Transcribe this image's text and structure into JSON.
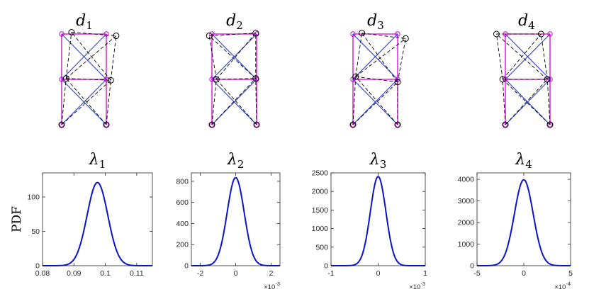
{
  "colors": {
    "undeformed": "#d100d1",
    "bracing": "#2a3fd6",
    "deformed": "#000000",
    "pdf_curve": "#0a14c8"
  },
  "mode_shapes": [
    {
      "label_base": "d",
      "label_sub": "1",
      "nodes": [
        [
          0,
          0
        ],
        [
          1,
          0
        ],
        [
          0,
          1
        ],
        [
          1,
          1
        ],
        [
          0,
          2
        ],
        [
          1,
          2
        ]
      ],
      "deformed": [
        [
          0,
          0
        ],
        [
          1,
          0
        ],
        [
          0.1,
          1.02
        ],
        [
          1.1,
          0.98
        ],
        [
          0.22,
          2.04
        ],
        [
          1.22,
          1.96
        ]
      ]
    },
    {
      "label_base": "d",
      "label_sub": "2",
      "nodes": [
        [
          0,
          0
        ],
        [
          1,
          0
        ],
        [
          0,
          1
        ],
        [
          1,
          1
        ],
        [
          0,
          2
        ],
        [
          1,
          2
        ]
      ],
      "deformed": [
        [
          0,
          0
        ],
        [
          1,
          0
        ],
        [
          0.1,
          1.0
        ],
        [
          0.98,
          1.02
        ],
        [
          -0.06,
          1.96
        ],
        [
          0.98,
          2.02
        ]
      ]
    },
    {
      "label_base": "d",
      "label_sub": "3",
      "nodes": [
        [
          0,
          0
        ],
        [
          1,
          0
        ],
        [
          0,
          1
        ],
        [
          1,
          1
        ],
        [
          0,
          2
        ],
        [
          1,
          2
        ]
      ],
      "deformed": [
        [
          0,
          0
        ],
        [
          1,
          0
        ],
        [
          0.06,
          1.06
        ],
        [
          1.0,
          0.94
        ],
        [
          0.2,
          2.02
        ],
        [
          1.18,
          1.9
        ]
      ]
    },
    {
      "label_base": "d",
      "label_sub": "4",
      "nodes": [
        [
          0,
          0
        ],
        [
          1,
          0
        ],
        [
          0,
          1
        ],
        [
          1,
          1
        ],
        [
          0,
          2
        ],
        [
          1,
          2
        ]
      ],
      "deformed": [
        [
          0,
          0
        ],
        [
          1,
          0
        ],
        [
          -0.06,
          1.0
        ],
        [
          0.94,
          1.0
        ],
        [
          -0.2,
          2.0
        ],
        [
          0.8,
          2.0
        ]
      ]
    }
  ],
  "chart_data": [
    {
      "type": "line",
      "title_base": "λ",
      "title_sub": "1",
      "ylabel": "PDF",
      "xlim": [
        0.08,
        0.115
      ],
      "ylim": [
        0,
        135
      ],
      "xticks": [
        0.08,
        0.09,
        0.1,
        0.11
      ],
      "xtick_labels": [
        "0.08",
        "0.09",
        "0.1",
        "0.11"
      ],
      "yticks": [
        0,
        50,
        100
      ],
      "ytick_labels": [
        "0",
        "50",
        "100"
      ],
      "exponent": null,
      "curve": {
        "shape": "gaussian",
        "mean": 0.0975,
        "std": 0.0033,
        "peak": 121
      }
    },
    {
      "type": "line",
      "title_base": "λ",
      "title_sub": "2",
      "ylabel": "",
      "xlim": [
        -2.5,
        2.5
      ],
      "ylim": [
        0,
        880
      ],
      "xticks": [
        -2,
        0,
        2
      ],
      "xtick_labels": [
        "-2",
        "0",
        "2"
      ],
      "yticks": [
        0,
        200,
        400,
        600,
        800
      ],
      "ytick_labels": [
        "0",
        "200",
        "400",
        "600",
        "800"
      ],
      "exponent": {
        "base": "×10",
        "power": "-3"
      },
      "curve": {
        "shape": "gaussian",
        "mean": 0,
        "std": 0.48,
        "peak": 835
      }
    },
    {
      "type": "line",
      "title_base": "λ",
      "title_sub": "3",
      "ylabel": "",
      "xlim": [
        -1,
        1
      ],
      "ylim": [
        0,
        2500
      ],
      "xticks": [
        -1,
        0,
        1
      ],
      "xtick_labels": [
        "-1",
        "0",
        "1"
      ],
      "yticks": [
        0,
        500,
        1000,
        1500,
        2000,
        2500
      ],
      "ytick_labels": [
        "0",
        "500",
        "1000",
        "1500",
        "2000",
        "2500"
      ],
      "exponent": {
        "base": "×10",
        "power": "-3"
      },
      "curve": {
        "shape": "gaussian",
        "mean": 0,
        "std": 0.165,
        "peak": 2400
      }
    },
    {
      "type": "line",
      "title_base": "λ",
      "title_sub": "4",
      "ylabel": "",
      "xlim": [
        -5,
        5
      ],
      "ylim": [
        0,
        4300
      ],
      "xticks": [
        -5,
        0,
        5
      ],
      "xtick_labels": [
        "-5",
        "0",
        "5"
      ],
      "yticks": [
        0,
        1000,
        2000,
        3000,
        4000
      ],
      "ytick_labels": [
        "0",
        "1000",
        "2000",
        "3000",
        "4000"
      ],
      "exponent": {
        "base": "×10",
        "power": "-4"
      },
      "curve": {
        "shape": "gaussian",
        "mean": 0,
        "std": 1.0,
        "peak": 3980
      }
    }
  ]
}
